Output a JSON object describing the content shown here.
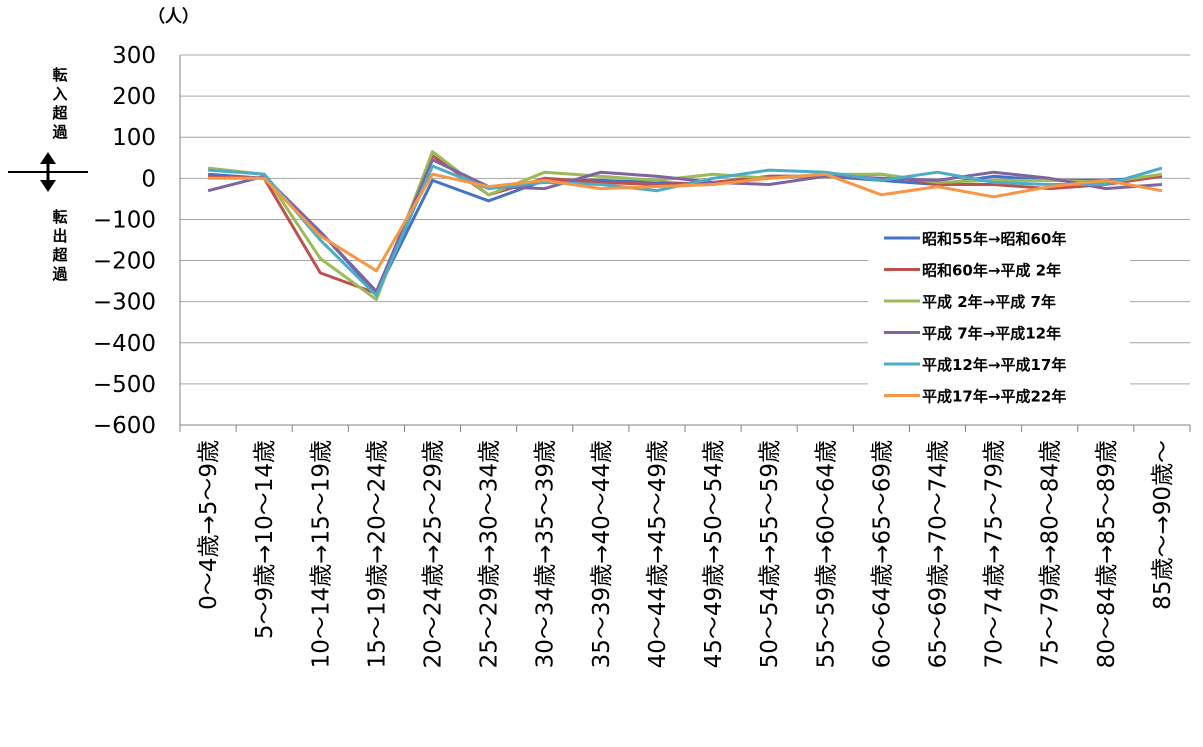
{
  "chart_data": {
    "type": "line",
    "unit_label": "（人）",
    "annotation_top": "転入超過",
    "annotation_bottom": "転出超過",
    "yticks": [
      "300",
      "200",
      "100",
      "0",
      "−100",
      "−200",
      "−300",
      "−400",
      "−500",
      "−600"
    ],
    "ylim": [
      -600,
      300
    ],
    "grid": true,
    "legend_position": "bottom-right",
    "categories": [
      "0～4歳→5～9歳",
      "5～9歳→10～14歳",
      "10～14歳→15～19歳",
      "15～19歳→20～24歳",
      "20～24歳→25～29歳",
      "25～29歳→30～34歳",
      "30～34歳→35～39歳",
      "35～39歳→40～44歳",
      "40～44歳→45～49歳",
      "45～49歳→50～54歳",
      "50～54歳→55～59歳",
      "55～59歳→60～64歳",
      "60～64歳→65～69歳",
      "65～69歳→70～74歳",
      "70～74歳→75～79歳",
      "75～79歳→80～84歳",
      "80～84歳→85～89歳",
      "85歳～→90歳～"
    ],
    "series": [
      {
        "name": "昭和55年→昭和60年",
        "color": "#4472c4",
        "values": [
          10,
          0,
          -130,
          -280,
          -5,
          -55,
          -5,
          -5,
          -10,
          -15,
          5,
          5,
          -5,
          -15,
          5,
          -5,
          -5,
          5
        ]
      },
      {
        "name": "昭和60年→平成 2年",
        "color": "#c0504d",
        "values": [
          5,
          0,
          -230,
          -280,
          55,
          -40,
          0,
          -10,
          -15,
          -10,
          5,
          5,
          10,
          -15,
          -15,
          -25,
          -15,
          5
        ]
      },
      {
        "name": "平成 2年→平成 7年",
        "color": "#9bbb59",
        "values": [
          25,
          10,
          -195,
          -295,
          65,
          -40,
          15,
          5,
          -5,
          10,
          0,
          10,
          10,
          -10,
          -5,
          -5,
          -10,
          10
        ]
      },
      {
        "name": "平成 7年→平成12年",
        "color": "#8064a2",
        "values": [
          -30,
          5,
          -130,
          -275,
          45,
          -20,
          -25,
          15,
          5,
          -10,
          -15,
          5,
          0,
          -5,
          15,
          0,
          -25,
          -15
        ]
      },
      {
        "name": "平成12年→平成17年",
        "color": "#4bacc6",
        "values": [
          20,
          10,
          -150,
          -285,
          30,
          -25,
          -10,
          -15,
          -30,
          0,
          20,
          15,
          -5,
          15,
          -10,
          -15,
          -15,
          25
        ]
      },
      {
        "name": "平成17年→平成22年",
        "color": "#f79646",
        "values": [
          0,
          0,
          -140,
          -225,
          10,
          -20,
          -5,
          -25,
          -20,
          -15,
          0,
          10,
          -40,
          -20,
          -45,
          -20,
          -5,
          -30
        ]
      }
    ]
  }
}
